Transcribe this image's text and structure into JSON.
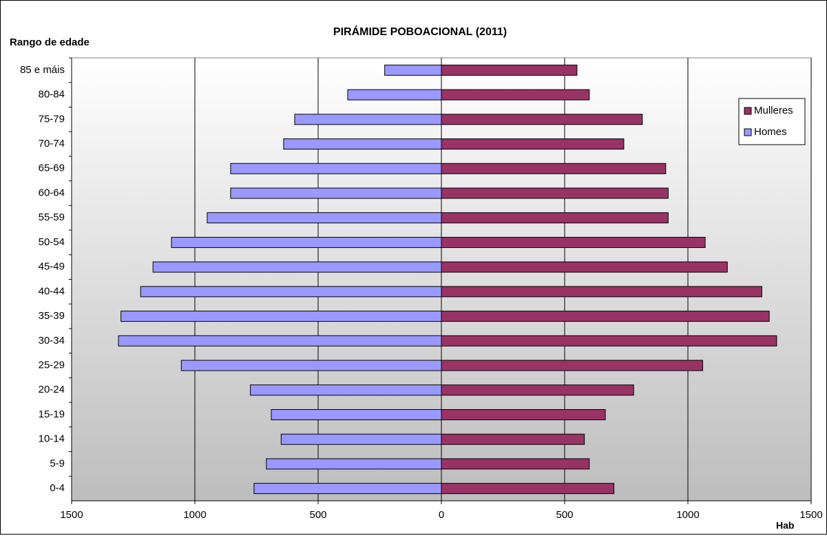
{
  "chart_data": {
    "type": "pyramid",
    "title": "PIRÁMIDE POBOACIONAL (2011)",
    "y_label": "Rango de edade",
    "x_label": "Hab",
    "categories": [
      "85 e máis",
      "80-84",
      "75-79",
      "70-74",
      "65-69",
      "60-64",
      "55-59",
      "50-54",
      "45-49",
      "40-44",
      "35-39",
      "30-34",
      "25-29",
      "20-24",
      "15-19",
      "10-14",
      "5-9",
      "0-4"
    ],
    "series": [
      {
        "name": "Mulleres",
        "color": "#993366",
        "values": [
          550,
          600,
          815,
          740,
          910,
          920,
          920,
          1070,
          1160,
          1300,
          1330,
          1360,
          1060,
          780,
          665,
          580,
          600,
          700
        ]
      },
      {
        "name": "Homes",
        "color": "#9999ff",
        "values": [
          -230,
          -380,
          -595,
          -640,
          -855,
          -855,
          -950,
          -1095,
          -1170,
          -1220,
          -1300,
          -1310,
          -1055,
          -775,
          -690,
          -650,
          -710,
          -760
        ]
      }
    ],
    "xlim": [
      -1500,
      1500
    ],
    "xticks": [
      {
        "value": -1500,
        "label": "1500"
      },
      {
        "value": -1000,
        "label": "1000"
      },
      {
        "value": -500,
        "label": "500"
      },
      0,
      500,
      1000,
      1500
    ],
    "grid": true,
    "legend": "right"
  }
}
